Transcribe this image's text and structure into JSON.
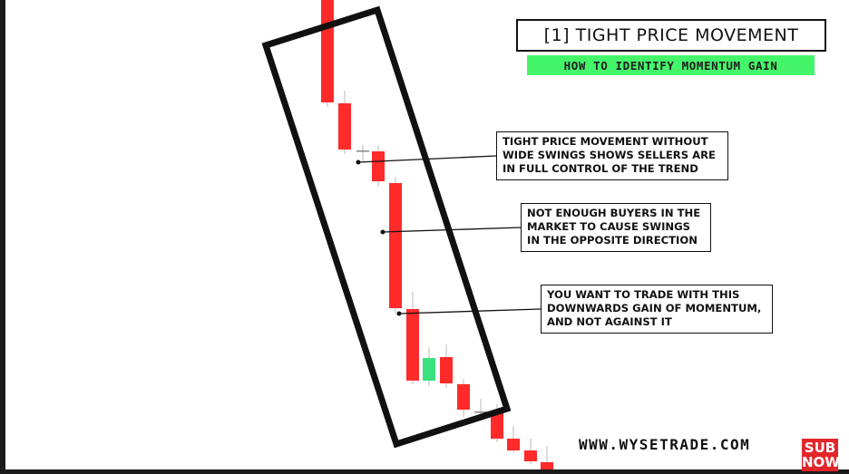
{
  "title": "[1] TIGHT PRICE MOVEMENT",
  "subtitle": "HOW TO IDENTIFY MOMENTUM GAIN",
  "notes": [
    "TIGHT PRICE MOVEMENT WITHOUT\nWIDE SWINGS SHOWS SELLERS ARE\nIN FULL CONTROL OF THE TREND",
    "NOT ENOUGH BUYERS IN THE\nMARKET TO CAUSE SWINGS\nIN THE OPPOSITE DIRECTION",
    "YOU WANT TO TRADE WITH THIS\nDOWNWARDS GAIN OF MOMENTUM,\nAND NOT AGAINST IT"
  ],
  "watermark": "WWW.WYSETRADE.COM",
  "badge": {
    "line1": "SUB",
    "line2": "NOW"
  },
  "colors": {
    "bearish": "#ff2a2a",
    "bullish": "#3be07f",
    "accent": "#44f56a",
    "badge": "#e3262b"
  }
}
